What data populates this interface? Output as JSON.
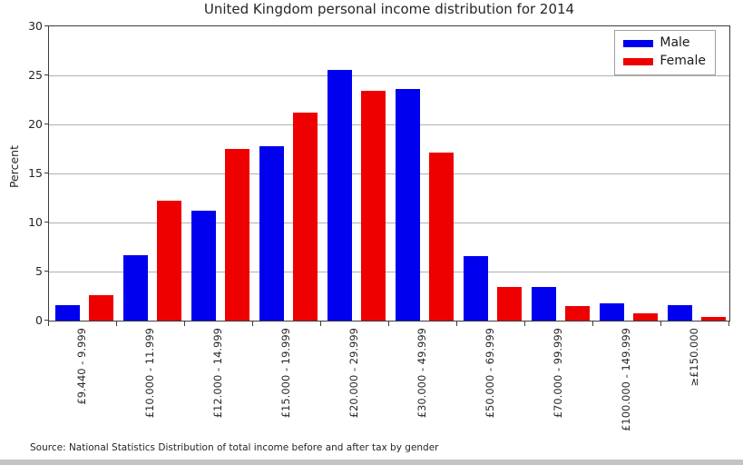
{
  "title": "United Kingdom personal income distribution for 2014",
  "ylabel": "Percent",
  "source_note": "Source: National Statistics Distribution of total income before and after tax by gender",
  "legend": {
    "male_label": "Male",
    "female_label": "Female"
  },
  "colors": {
    "male": "#0000ee",
    "female": "#ee0000",
    "gridline": "#b0b0b0",
    "axis_frame": "#3c3c3c",
    "text": "#262626"
  },
  "chart_data": {
    "type": "bar",
    "title": "United Kingdom personal income distribution for 2014",
    "xlabel": "",
    "ylabel": "Percent",
    "ylim": [
      0,
      30
    ],
    "yticks": [
      0,
      5,
      10,
      15,
      20,
      25,
      30
    ],
    "grid": true,
    "legend_position": "top-right",
    "categories": [
      "£9.440 - 9.999",
      "£10.000 - 11.999",
      "£12.000 - 14.999",
      "£15.000 - 19.999",
      "£20.000 - 29.999",
      "£30.000 - 49.999",
      "£50.000 - 69.999",
      "£70.000 - 99.999",
      "£100.000 - 149.999",
      "≥£150.000"
    ],
    "series": [
      {
        "name": "Male",
        "color": "#0000ee",
        "values": [
          1.6,
          6.7,
          11.2,
          17.8,
          25.6,
          23.6,
          6.6,
          3.4,
          1.8,
          1.6
        ]
      },
      {
        "name": "Female",
        "color": "#ee0000",
        "values": [
          2.6,
          12.2,
          17.5,
          21.2,
          23.4,
          17.1,
          3.4,
          1.5,
          0.7,
          0.4
        ]
      }
    ]
  }
}
